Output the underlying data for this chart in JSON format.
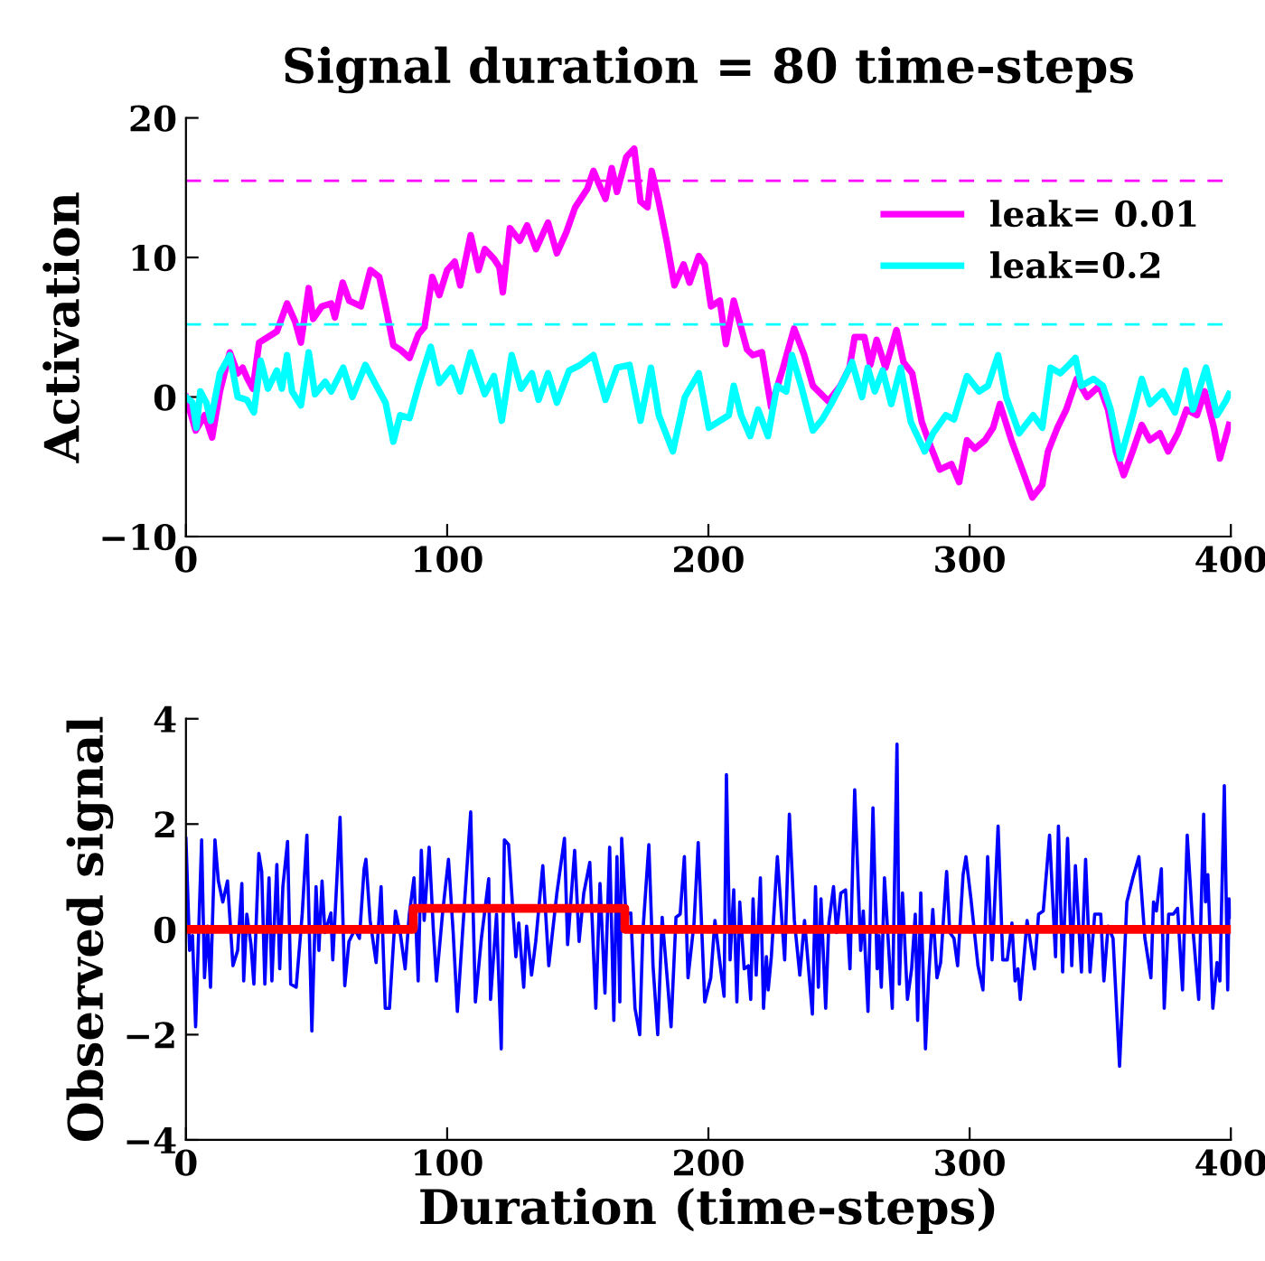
{
  "chart_data": [
    {
      "type": "line",
      "title": "Signal duration = 80 time-steps",
      "ylabel": "Activation",
      "xlim": [
        0,
        400
      ],
      "xticks": [
        0,
        100,
        200,
        300,
        400
      ],
      "ylim": [
        -10,
        20
      ],
      "yticks": [
        -10,
        0,
        10,
        20
      ],
      "grid": false,
      "legend": "top right",
      "line_style": "solid",
      "ref_lines": [
        {
          "axis": "y",
          "value": 15.5,
          "color": "#ff00ff",
          "line_style": "dashed"
        },
        {
          "axis": "y",
          "value": 5.2,
          "color": "#00ffff",
          "line_style": "dashed"
        }
      ],
      "series": [
        {
          "name": "leak= 0.01",
          "color": "#ff00ff",
          "x": [
            0,
            3.7,
            7.2,
            10,
            13,
            16.8,
            19.8,
            21.7,
            23.3,
            25.6,
            28,
            31.4,
            34.8,
            38.7,
            41.8,
            44,
            47,
            48.7,
            52,
            55.6,
            57,
            60,
            62.5,
            67,
            70.6,
            74,
            76.4,
            79.4,
            82,
            85.6,
            89,
            91.3,
            94.3,
            97,
            100,
            102.9,
            105,
            109,
            112,
            114.4,
            117.9,
            120,
            121.3,
            124,
            127.8,
            130.6,
            134,
            138.6,
            142,
            145.6,
            149,
            153.6,
            156,
            158,
            160.6,
            163,
            165,
            168.6,
            171.6,
            174,
            176.7,
            178.3,
            181,
            184,
            187,
            190.5,
            192.8,
            196.3,
            198.6,
            201,
            204.4,
            206.7,
            209.7,
            214.8,
            217,
            220.5,
            224,
            228.6,
            232.8,
            236.7,
            240,
            245.9,
            250.5,
            254,
            256,
            259.7,
            262,
            264.4,
            267.8,
            272,
            274.7,
            278,
            281.7,
            285,
            288.6,
            293,
            296,
            299,
            302,
            305.9,
            309,
            311.6,
            316,
            320.9,
            324,
            327.8,
            330,
            333.6,
            337,
            341,
            345,
            349.7,
            353,
            356,
            359,
            362.4,
            365.9,
            369,
            372.8,
            376,
            379.7,
            383,
            387,
            390,
            393.5,
            395.8,
            399.3
          ],
          "values": [
            0,
            -2.4,
            -1.3,
            -2.9,
            0.4,
            3.2,
            1.7,
            2.1,
            1.4,
            0.6,
            3.9,
            4.3,
            4.7,
            6.7,
            5.4,
            3.9,
            7.8,
            5.6,
            6.5,
            6.7,
            5.7,
            8.2,
            6.9,
            6.5,
            9.1,
            8.6,
            6.5,
            3.7,
            3.4,
            2.8,
            4.5,
            5.0,
            8.6,
            7.3,
            9.1,
            9.7,
            8,
            11.6,
            9.1,
            10.6,
            9.9,
            9.3,
            7.5,
            12.1,
            11.2,
            12.3,
            10.6,
            12.5,
            10.3,
            11.8,
            13.6,
            14.9,
            16.2,
            15.3,
            14.2,
            16.4,
            14.7,
            17.2,
            17.8,
            14,
            13.6,
            16.2,
            14,
            11.2,
            8,
            9.5,
            8.2,
            10.1,
            9.5,
            6.5,
            6.9,
            3.8,
            6.9,
            3.4,
            3,
            3.2,
            -0.7,
            2.1,
            4.9,
            3,
            0.8,
            -0.3,
            0.8,
            2.1,
            4.3,
            4.3,
            2.3,
            4.1,
            2.1,
            4.8,
            2.5,
            1.7,
            -1.8,
            -3.5,
            -5.2,
            -4.8,
            -6.1,
            -3.1,
            -3.7,
            -3.1,
            -2.2,
            -0.5,
            -3.1,
            -5.6,
            -7.2,
            -6.3,
            -3.9,
            -2.2,
            -0.9,
            1.3,
            0,
            0.8,
            -0.9,
            -3.9,
            -5.6,
            -3.9,
            -2,
            -3.1,
            -2.6,
            -3.9,
            -2.6,
            -0.9,
            -1.3,
            0.4,
            -2.2,
            -4.4,
            -2
          ]
        },
        {
          "name": "leak=0.2",
          "color": "#00ffff",
          "x": [
            0,
            2.5,
            4,
            5.5,
            7.8,
            9.5,
            13,
            16.8,
            19.8,
            23.3,
            26,
            28.6,
            31.4,
            34.8,
            36.7,
            38.7,
            40.6,
            44,
            47,
            49.4,
            53.3,
            55.6,
            60.2,
            63.7,
            68.7,
            72.9,
            76.4,
            79.4,
            82,
            85.6,
            89,
            93.7,
            97,
            101.7,
            105,
            109,
            114.4,
            117.9,
            120.9,
            124.7,
            128.3,
            132.4,
            135,
            138.6,
            142,
            146.7,
            151,
            156,
            160.6,
            165,
            169.8,
            174,
            178,
            181,
            186.4,
            191,
            196.3,
            200.2,
            207.8,
            209.7,
            212.5,
            216,
            219,
            222.8,
            226.3,
            229.8,
            232,
            235.5,
            240,
            243.6,
            247,
            251.7,
            255,
            258.8,
            261,
            263.7,
            266.7,
            270,
            273.6,
            277.5,
            282.8,
            286,
            290.9,
            294,
            299,
            303.6,
            307,
            310.9,
            314,
            319,
            324.3,
            327.8,
            331,
            334.7,
            338,
            340.5,
            342.8,
            347.4,
            351,
            354,
            357.8,
            362.4,
            365.9,
            369,
            374,
            378.6,
            382.7,
            385.5,
            390.5,
            394.7,
            398,
            399.3
          ],
          "values": [
            0,
            -0.4,
            -2.2,
            0.4,
            -0.4,
            -1.7,
            1.7,
            3,
            0,
            -0.2,
            -1.1,
            2.6,
            0.6,
            1.9,
            0.6,
            3,
            0.4,
            -0.6,
            3.2,
            0.2,
            1.1,
            0.4,
            2.1,
            0,
            2.3,
            0.8,
            -0.4,
            -3.2,
            -1.3,
            -1.5,
            0.8,
            3.6,
            1,
            2.1,
            0.4,
            3.2,
            0.2,
            1.5,
            -1.7,
            3,
            0.6,
            1.7,
            -0.2,
            1.7,
            -0.4,
            1.9,
            2.3,
            3,
            -0.2,
            2.1,
            2.3,
            -1.7,
            2.1,
            -1.3,
            -3.9,
            0,
            1.7,
            -2.2,
            -1.3,
            0.8,
            -1.3,
            -2.8,
            -0.9,
            -2.8,
            0.8,
            0.4,
            3,
            0.8,
            -2.4,
            -1.6,
            -0.5,
            1.2,
            2.5,
            0,
            2.1,
            0.4,
            1.9,
            -0.5,
            2.1,
            -1.8,
            -3.9,
            -2.6,
            -1.3,
            -1.6,
            1.5,
            0.4,
            0.8,
            3,
            0,
            -2.6,
            -1.3,
            -2.2,
            2.1,
            1.7,
            2.3,
            2.8,
            0.8,
            1.3,
            0.8,
            -0.9,
            -4.4,
            -1.3,
            1.3,
            -0.5,
            0.4,
            -1.1,
            1.9,
            -0.9,
            2.1,
            -1.3,
            -0.3,
            0.2
          ]
        }
      ]
    },
    {
      "type": "line",
      "xlabel": "Duration (time-steps)",
      "ylabel": "Observed signal",
      "xlim": [
        0,
        400
      ],
      "xticks": [
        0,
        100,
        200,
        300,
        400
      ],
      "ylim": [
        -4,
        4
      ],
      "yticks": [
        -4,
        -2,
        0,
        2,
        4
      ],
      "grid": false,
      "line_style": "solid",
      "series": [
        {
          "color": "#0000ff",
          "x": [
            0,
            1.4,
            2.5,
            3.7,
            6,
            7.1,
            8.3,
            9.4,
            11.1,
            12.4,
            14.1,
            15.9,
            18,
            19.8,
            21.4,
            22.1,
            23.3,
            24.9,
            26,
            27.9,
            29,
            30.2,
            31.8,
            32.9,
            34.8,
            35.9,
            37.1,
            38.9,
            40.1,
            42.2,
            44.5,
            46.3,
            48.2,
            49.8,
            50.9,
            52.1,
            53.2,
            55.5,
            56.2,
            59,
            60.8,
            62.4,
            64.7,
            66.4,
            68.2,
            68.9,
            70.5,
            72.8,
            74.7,
            76.3,
            77.9,
            80.2,
            82,
            83.9,
            85.5,
            87.3,
            88.9,
            90.1,
            91.2,
            93.1,
            94.7,
            95.9,
            98.2,
            100.5,
            102.3,
            103.9,
            106.2,
            109,
            110.8,
            113.1,
            115.9,
            116.6,
            118.9,
            120.7,
            121.9,
            123.5,
            126.3,
            127.4,
            129.3,
            130.4,
            132.3,
            133.9,
            136.6,
            138.9,
            142,
            144.9,
            146.1,
            148.8,
            150.5,
            152.3,
            154.6,
            156.9,
            158.5,
            160.4,
            162.2,
            163.8,
            165,
            166.1,
            166.8,
            168.4,
            170.3,
            171.9,
            173.7,
            174.9,
            177.2,
            178.8,
            180.6,
            182.3,
            184.6,
            185.7,
            187.6,
            189.2,
            190.8,
            192.2,
            194.5,
            196.1,
            198.6,
            200.9,
            202.5,
            204.4,
            206,
            206.9,
            208.3,
            209.7,
            210.9,
            212,
            213.7,
            215.3,
            216.2,
            217.1,
            218.3,
            219.9,
            221.1,
            222.2,
            222.9,
            224.1,
            226.4,
            229.2,
            231,
            232.9,
            235,
            236.8,
            239.8,
            241,
            242.1,
            243.1,
            244.9,
            246.1,
            247.9,
            249.1,
            250.7,
            252.5,
            254.2,
            256,
            258.3,
            259.3,
            261.1,
            263,
            264.6,
            265.3,
            266.2,
            267.4,
            270.4,
            272.2,
            273.1,
            274.3,
            276.2,
            277.8,
            279.2,
            280.1,
            281.3,
            283.1,
            284.3,
            285.9,
            287.5,
            288.9,
            291.2,
            292.4,
            294,
            295.4,
            297.5,
            298.6,
            300.5,
            303.2,
            305.1,
            306.9,
            308.6,
            310.9,
            312.7,
            314.4,
            316.2,
            317.4,
            318.5,
            319.4,
            322,
            324.8,
            326.4,
            328.2,
            330.6,
            332.9,
            334,
            335.6,
            337.5,
            339.1,
            340.5,
            342.8,
            344.4,
            346.1,
            347.9,
            350.2,
            351.4,
            353,
            354.9,
            357.4,
            360.2,
            362.5,
            364.8,
            367.1,
            369.4,
            370.4,
            371.5,
            373.4,
            374.5,
            376.2,
            378,
            379.6,
            381.5,
            383.3,
            385.6,
            387.7,
            389.6,
            390.3,
            391.2,
            393.1,
            394.7,
            395.8,
            397.5,
            398.8,
            399.3,
            400
          ],
          "values": [
            1.73,
            -0.4,
            -0.12,
            -1.85,
            1.7,
            -0.92,
            0.06,
            -1.1,
            1.7,
            0.92,
            0.52,
            0.92,
            -0.69,
            -0.4,
            0.87,
            -0.98,
            0.29,
            -0.29,
            -1.04,
            1.44,
            1.1,
            -1.04,
            0.98,
            -0.98,
            1.23,
            -0.75,
            0.81,
            1.67,
            -1.04,
            -1.1,
            0.29,
            1.79,
            -1.93,
            0.81,
            -0.4,
            0.92,
            -0.06,
            0.31,
            -0.58,
            2.13,
            -1.07,
            -0.23,
            0,
            -0.17,
            1.15,
            1.33,
            0.17,
            -0.63,
            0.81,
            -1.5,
            -1.5,
            0.35,
            -0.06,
            -0.75,
            0.29,
            0.98,
            -0.98,
            1.5,
            0.17,
            1.56,
            0,
            -0.98,
            0.29,
            1.33,
            -0.06,
            -1.56,
            0.17,
            2.23,
            -1.38,
            -0.17,
            0.96,
            -1.33,
            0.29,
            -2.27,
            1.7,
            1.61,
            -0.52,
            0.12,
            -1.1,
            0.06,
            -0.87,
            -0.23,
            1.21,
            -0.69,
            0.69,
            1.73,
            -0.29,
            1.5,
            -0.23,
            0.69,
            1.27,
            -1.5,
            0.87,
            -1.21,
            1.56,
            -1.73,
            1.38,
            -1.38,
            1.73,
            0.29,
            0.31,
            -1.5,
            -2,
            -0.06,
            1.61,
            -0.69,
            -2,
            0.23,
            -1.15,
            -1.85,
            0.23,
            0.29,
            1.38,
            -0.92,
            0.12,
            1.65,
            -1.38,
            -0.92,
            0.17,
            -0.63,
            -1.27,
            2.94,
            -0.58,
            0.75,
            -1.38,
            0.52,
            -0.75,
            -0.69,
            -1.33,
            0.58,
            -0.87,
            0.98,
            -1.5,
            -0.52,
            -1.15,
            -0.52,
            1.38,
            -0.58,
            2.19,
            0.17,
            -0.87,
            0.17,
            -1.61,
            0.81,
            -1.1,
            0.58,
            -1.5,
            0.12,
            0.81,
            -0.06,
            0.69,
            0.75,
            -0.75,
            2.65,
            -0.4,
            0.35,
            -1.56,
            2.31,
            -0.75,
            -0.12,
            -1.1,
            0.98,
            -1.5,
            3.52,
            -1.04,
            0.69,
            -1.33,
            -0.75,
            0.29,
            -1.73,
            0.69,
            -2.27,
            -0.92,
            0.38,
            -0.92,
            -0.63,
            1.1,
            -0.06,
            -0.17,
            -0.69,
            1.04,
            1.38,
            0.58,
            -0.69,
            -1.15,
            1.38,
            -0.58,
            1.96,
            -0.58,
            -0.58,
            0.12,
            -0.98,
            -0.75,
            -1.33,
            0.17,
            -0.75,
            0.29,
            0.35,
            1.79,
            -0.52,
            1.96,
            -0.81,
            1.73,
            -0.69,
            1.21,
            -0.81,
            1.33,
            -0.81,
            0.29,
            0.29,
            -0.98,
            0.06,
            -0.17,
            -2.6,
            0.52,
            0.98,
            1.38,
            -0.17,
            -0.92,
            0.52,
            0.35,
            1.15,
            -1.5,
            0.29,
            0.29,
            0.4,
            -1.15,
            1.79,
            -0.06,
            -1.33,
            2.19,
            0.52,
            1.04,
            -1.5,
            -0.63,
            -0.98,
            2.73,
            -1.15,
            0.58,
            0.23
          ]
        },
        {
          "type": "step",
          "color": "#ff0000",
          "x": [
            0,
            87,
            168,
            400
          ],
          "values": [
            0,
            0.4,
            0,
            0
          ]
        }
      ]
    }
  ]
}
